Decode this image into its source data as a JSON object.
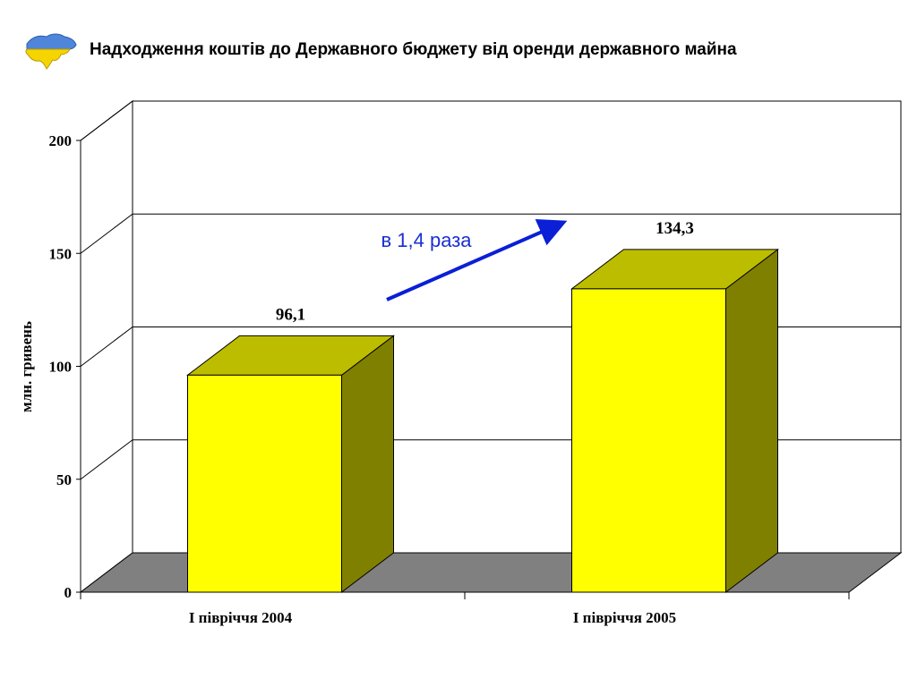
{
  "page": {
    "title": "Надходження коштів до Державного бюджету від оренди державного майна"
  },
  "icons": {
    "logo": "ukraine-map-icon"
  },
  "colors": {
    "bar_front": "#ffff00",
    "bar_top": "#bdbd00",
    "bar_side": "#808000",
    "floor": "#808080",
    "arrow": "#0a1fd6",
    "annotation": "#1a2fd0"
  },
  "chart_data": {
    "type": "bar",
    "style": "3d",
    "categories": [
      "І півріччя 2004",
      "І півріччя 2005"
    ],
    "values": [
      96.1,
      134.3
    ],
    "data_labels": [
      "96,1",
      "134,3"
    ],
    "ylabel": "млн. гривень",
    "ylim": [
      0,
      200
    ],
    "yticks": [
      0,
      50,
      100,
      150,
      200
    ],
    "grid": true,
    "annotation": "в 1,4 раза"
  }
}
